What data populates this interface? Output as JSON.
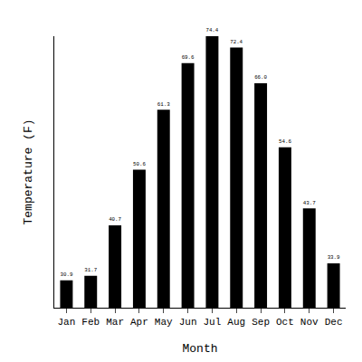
{
  "chart_data": {
    "type": "bar",
    "x_label": "Month",
    "y_label": "Temperature (F)",
    "categories": [
      "Jan",
      "Feb",
      "Mar",
      "Apr",
      "May",
      "Jun",
      "Jul",
      "Aug",
      "Sep",
      "Oct",
      "Nov",
      "Dec"
    ],
    "values": [
      30.9,
      31.7,
      40.7,
      50.6,
      61.3,
      69.6,
      74.4,
      72.4,
      66.0,
      54.6,
      43.7,
      33.9
    ],
    "value_labels": [
      "30.9",
      "31.7",
      "40.7",
      "50.6",
      "61.3",
      "69.6",
      "74.4",
      "72.4",
      "66.0",
      "54.6",
      "43.7",
      "33.9"
    ],
    "color": "#000000",
    "ylim": [
      26,
      74.4
    ],
    "grid": false,
    "data_labels": true,
    "tick_labels": "x"
  }
}
